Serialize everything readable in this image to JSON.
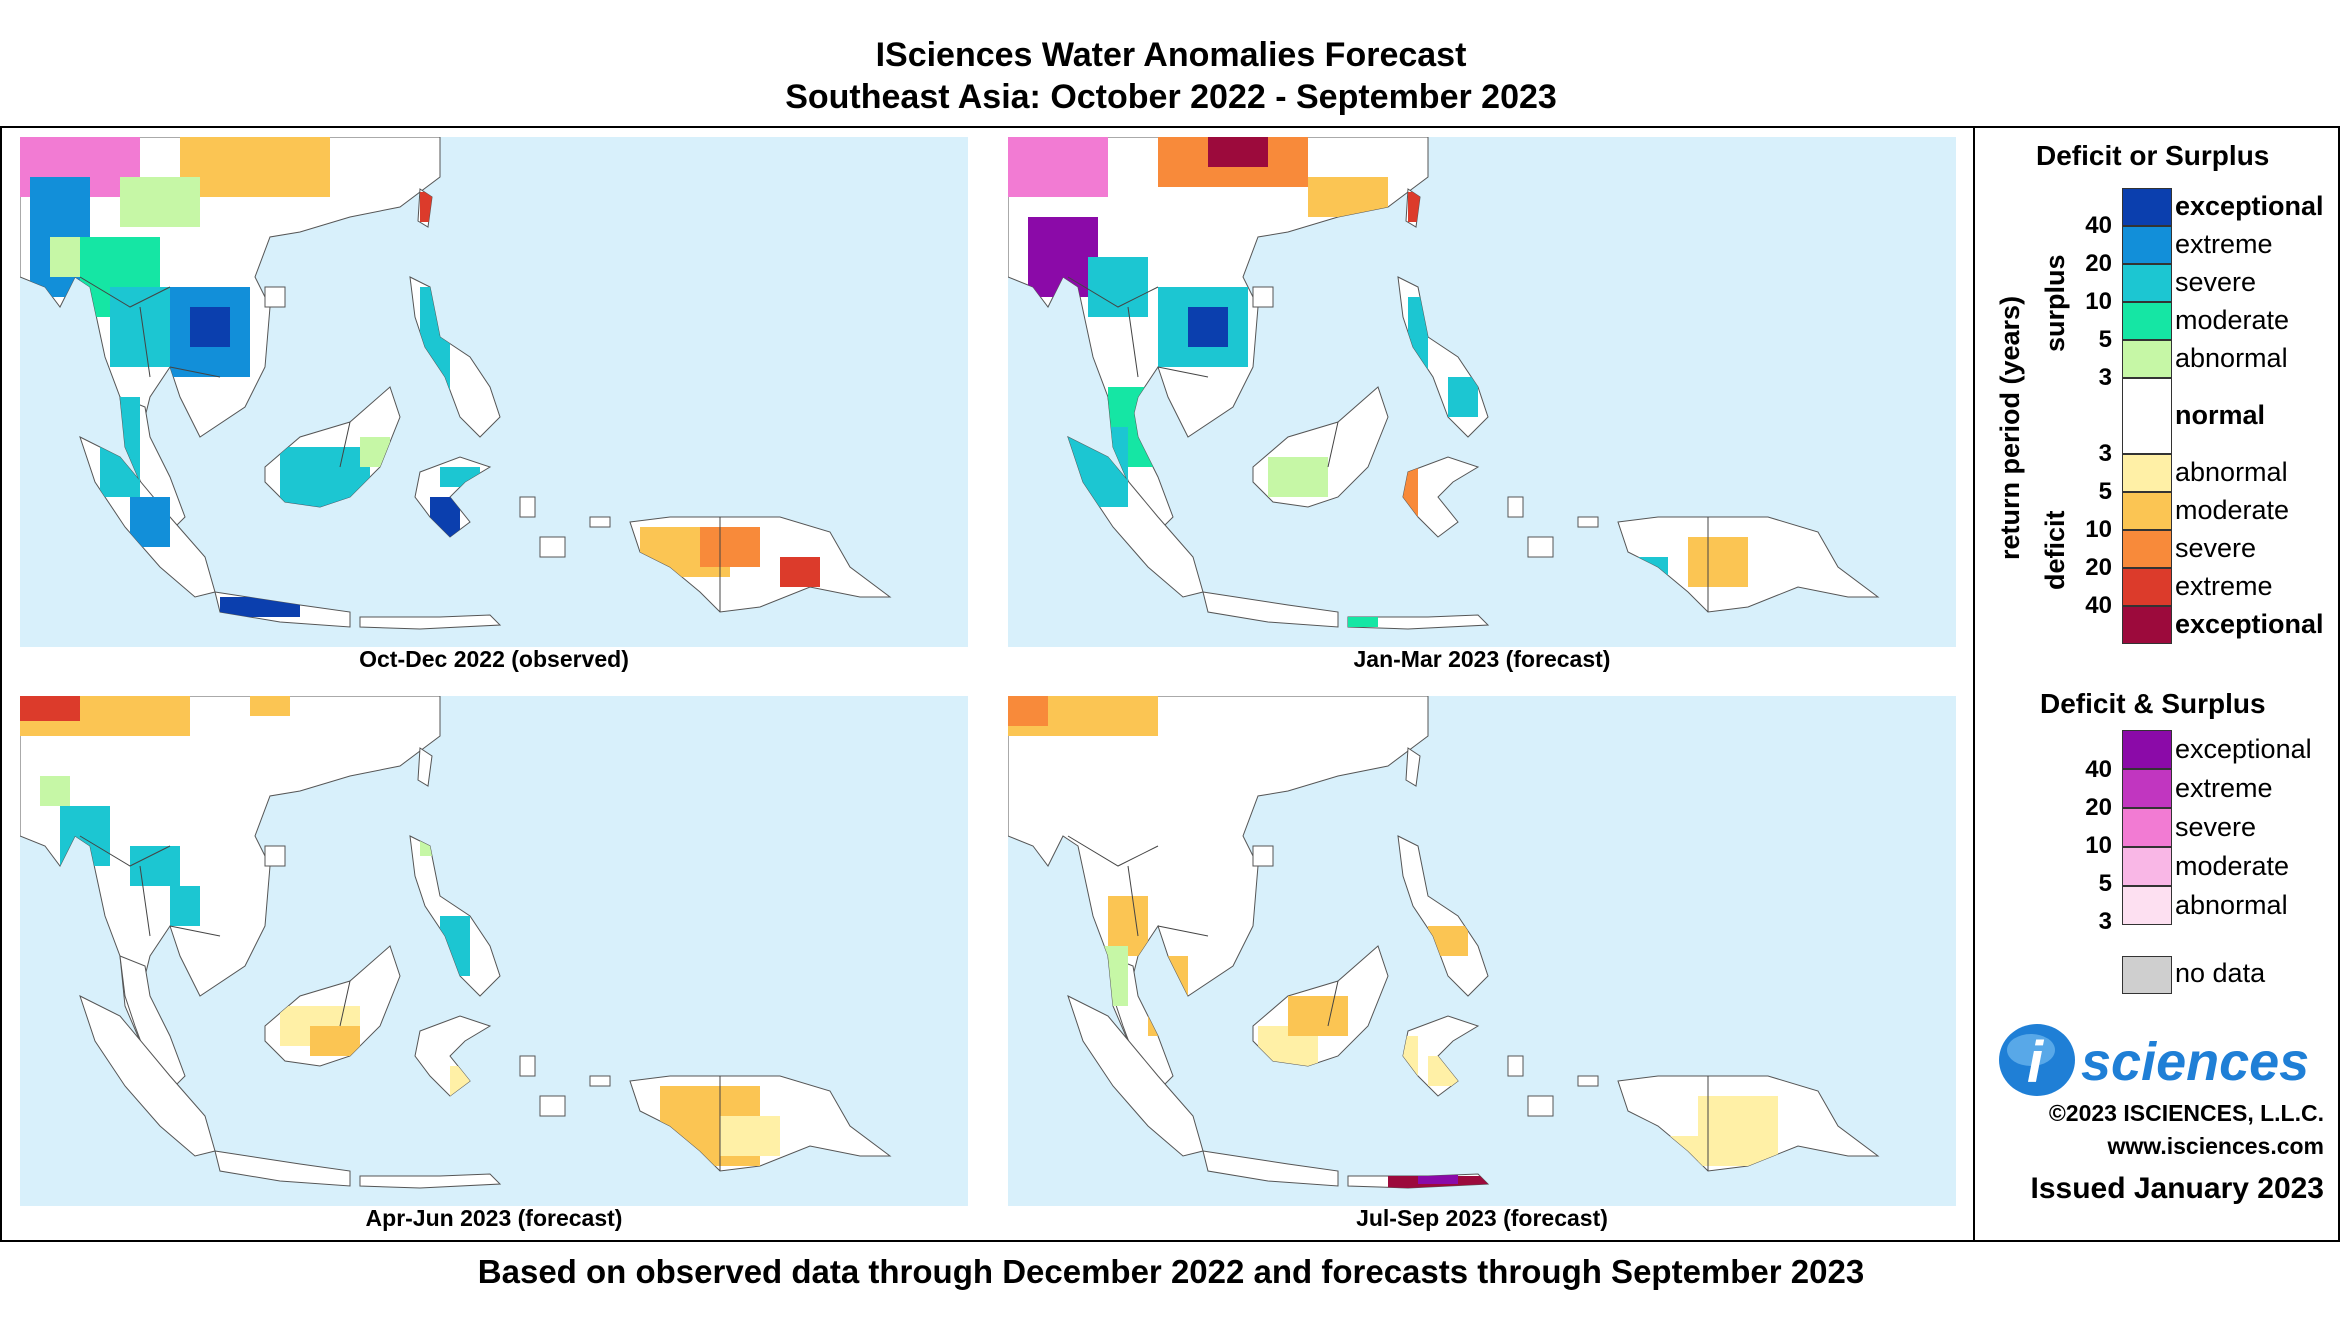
{
  "header": {
    "title": "ISciences Water Anomalies Forecast",
    "subtitle": "Southeast Asia: October 2022 - September 2023"
  },
  "panels": [
    {
      "caption": "Oct-Dec 2022 (observed)"
    },
    {
      "caption": "Jan-Mar 2023 (forecast)"
    },
    {
      "caption": "Apr-Jun 2023 (forecast)"
    },
    {
      "caption": "Jul-Sep 2023 (forecast)"
    }
  ],
  "legend": {
    "deficit_or_surplus": {
      "title": "Deficit or Surplus",
      "axis_label": "return period (years)",
      "surplus_label": "surplus",
      "deficit_label": "deficit",
      "surplus_classes": [
        {
          "label": "exceptional",
          "color": "#0b3fae"
        },
        {
          "label": "extreme",
          "color": "#128fd9"
        },
        {
          "label": "severe",
          "color": "#1cc6d2"
        },
        {
          "label": "moderate",
          "color": "#15e6a4"
        },
        {
          "label": "abnormal",
          "color": "#c6f7a6"
        }
      ],
      "normal": {
        "label": "normal",
        "color": "#ffffff"
      },
      "deficit_classes": [
        {
          "label": "abnormal",
          "color": "#fff0a6"
        },
        {
          "label": "moderate",
          "color": "#fbc553"
        },
        {
          "label": "severe",
          "color": "#f88a3a"
        },
        {
          "label": "extreme",
          "color": "#dc3b2b"
        },
        {
          "label": "exceptional",
          "color": "#9c0a3c"
        }
      ],
      "surplus_ticks": [
        "40",
        "20",
        "10",
        "5",
        "3"
      ],
      "deficit_ticks": [
        "3",
        "5",
        "10",
        "20",
        "40"
      ]
    },
    "deficit_and_surplus": {
      "title": "Deficit & Surplus",
      "classes": [
        {
          "label": "exceptional",
          "color": "#8b0aa8"
        },
        {
          "label": "extreme",
          "color": "#c136c0"
        },
        {
          "label": "severe",
          "color": "#f27bd3"
        },
        {
          "label": "moderate",
          "color": "#f9b7e6"
        },
        {
          "label": "abnormal",
          "color": "#fde0f1"
        }
      ],
      "ticks": [
        "40",
        "20",
        "10",
        "5",
        "3"
      ]
    },
    "no_data": {
      "label": "no data",
      "color": "#cfcfcf"
    }
  },
  "branding": {
    "logo_letter": "i",
    "logo_text": "sciences",
    "copyright": "©2023 ISCIENCES, L.L.C.",
    "website": "www.isciences.com",
    "issued": "Issued January 2023"
  },
  "footer": "Based on observed data through December 2022 and forecasts through September 2023",
  "map_colors": {
    "ocean": "#d8f0fb",
    "land": "#ffffff",
    "coast": "#555555"
  }
}
